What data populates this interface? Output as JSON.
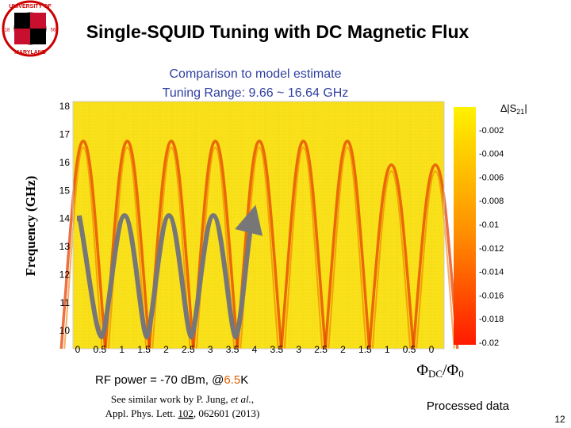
{
  "title": "Single-SQUID Tuning with DC Magnetic Flux",
  "logo": {
    "top": "UNIVERSITY OF",
    "bottom": "MARYLAND",
    "left": "18",
    "right": "56"
  },
  "annotation": {
    "line1": "Comparison to model estimate",
    "line2": "Tuning Range: 9.66 ~ 16.64 GHz"
  },
  "plot": {
    "y_label": "Frequency (GHz)",
    "y_ticks": [
      "18",
      "17",
      "16",
      "15",
      "14",
      "13",
      "12",
      "11",
      "10"
    ],
    "x_ticks": [
      "0",
      "0.5",
      "1",
      "1.5",
      "2",
      "2.5",
      "3",
      "3.5",
      "4",
      "3.5",
      "3",
      "2.5",
      "2",
      "1.5",
      "1",
      "0.5",
      "0"
    ],
    "x_label": {
      "phi1": "Φ",
      "sub1": "DC",
      "slash": "/Φ",
      "sub2": "0"
    },
    "colorbar_label": {
      "text": "∆|S",
      "sub": "21",
      "end": "|"
    },
    "colorbar_ticks": [
      "-0.002",
      "-0.004",
      "-0.006",
      "-0.008",
      "-0.01",
      "-0.012",
      "-0.014",
      "-0.016",
      "-0.018",
      "-0.02"
    ]
  },
  "conditions": {
    "prefix": "RF power = -70 dBm, @",
    "temp": "6.5",
    "unit": "K"
  },
  "reference": {
    "a": "See similar work by P. Jung, ",
    "b": "et al.",
    "c": ",",
    "d": "Appl. Phys. Lett. ",
    "e": "102",
    "f": ", 062601 (2013)"
  },
  "footer": {
    "note": "Processed data",
    "page": "12"
  }
}
